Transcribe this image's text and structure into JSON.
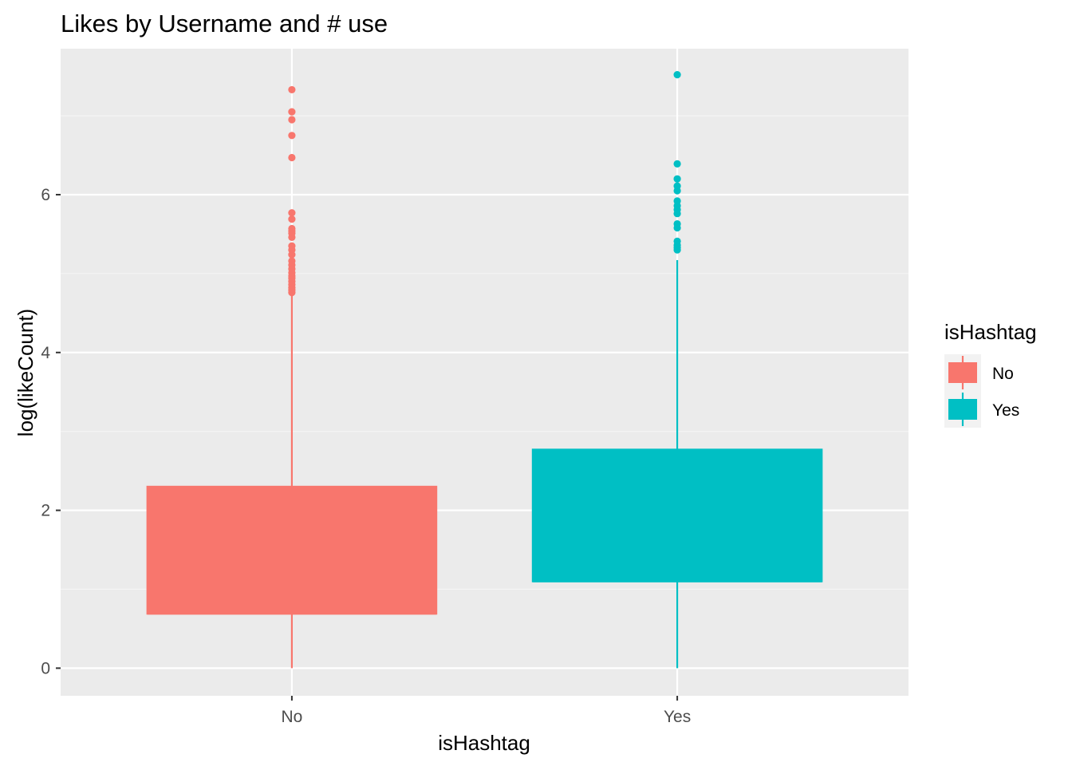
{
  "chart_data": {
    "type": "boxplot",
    "title": "Likes by Username and # use",
    "xlabel": "isHashtag",
    "ylabel": "log(likeCount)",
    "categories": [
      "No",
      "Yes"
    ],
    "ylim": [
      -0.35,
      7.85
    ],
    "yticks": [
      0,
      2,
      4,
      6
    ],
    "ytick_labels": [
      "0",
      "2",
      "4",
      "6"
    ],
    "grid": true,
    "legend": {
      "title": "isHashtag",
      "position": "right",
      "entries": [
        {
          "label": "No",
          "color": "#F8766D"
        },
        {
          "label": "Yes",
          "color": "#00BFC4"
        }
      ]
    },
    "series": [
      {
        "category": "No",
        "color": "#F8766D",
        "min": 0.0,
        "q1": 0.69,
        "median": 0.69,
        "q3": 2.3,
        "max": 4.75,
        "outliers": [
          7.33,
          7.05,
          6.95,
          6.75,
          6.47,
          5.77,
          5.69,
          5.57,
          5.54,
          5.51,
          5.46,
          5.35,
          5.3,
          5.24,
          5.16,
          5.11,
          5.06,
          5.01,
          4.97,
          4.94,
          4.9,
          4.86,
          4.82,
          4.79,
          4.76
        ]
      },
      {
        "category": "Yes",
        "color": "#00BFC4",
        "min": 0.0,
        "q1": 1.1,
        "median": 1.1,
        "q3": 2.77,
        "max": 5.17,
        "outliers": [
          7.52,
          6.39,
          6.2,
          6.11,
          6.05,
          5.92,
          5.86,
          5.81,
          5.76,
          5.63,
          5.58,
          5.41,
          5.36,
          5.33,
          5.3
        ]
      }
    ]
  },
  "colors": {
    "panel_background": "#EBEBEB",
    "grid_major": "#FFFFFF",
    "grid_minor": "#F5F5F5",
    "tick_text": "#4D4D4D"
  }
}
